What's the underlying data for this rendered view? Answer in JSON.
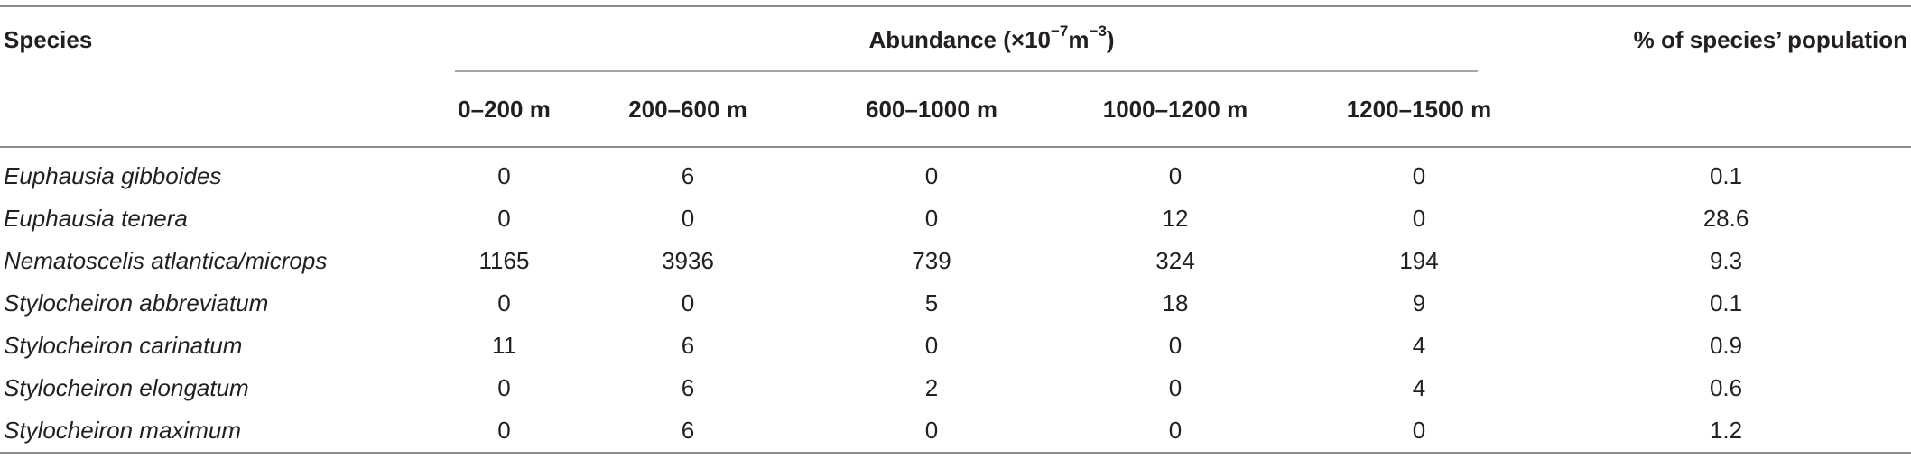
{
  "table": {
    "headers": {
      "species": "Species",
      "abundance_prefix": "Abundance (×10",
      "abundance_exp1": "−7",
      "abundance_mid": "m",
      "abundance_exp2": "−3",
      "abundance_suffix": ")",
      "percent": "% of species’ population",
      "depths": [
        "0–200 m",
        "200–600 m",
        "600–1000 m",
        "1000–1200 m",
        "1200–1500 m"
      ]
    },
    "rows": [
      {
        "species": "Euphausia gibboides",
        "values": [
          "0",
          "6",
          "0",
          "0",
          "0"
        ],
        "percent": "0.1"
      },
      {
        "species": "Euphausia tenera",
        "values": [
          "0",
          "0",
          "0",
          "12",
          "0"
        ],
        "percent": "28.6"
      },
      {
        "species": "Nematoscelis atlantica/microps",
        "values": [
          "1165",
          "3936",
          "739",
          "324",
          "194"
        ],
        "percent": "9.3"
      },
      {
        "species": "Stylocheiron abbreviatum",
        "values": [
          "0",
          "0",
          "5",
          "18",
          "9"
        ],
        "percent": "0.1"
      },
      {
        "species": "Stylocheiron carinatum",
        "values": [
          "11",
          "6",
          "0",
          "0",
          "4"
        ],
        "percent": "0.9"
      },
      {
        "species": "Stylocheiron elongatum",
        "values": [
          "0",
          "6",
          "2",
          "0",
          "4"
        ],
        "percent": "0.6"
      },
      {
        "species": "Stylocheiron maximum",
        "values": [
          "0",
          "6",
          "0",
          "0",
          "0"
        ],
        "percent": "1.2"
      }
    ]
  }
}
